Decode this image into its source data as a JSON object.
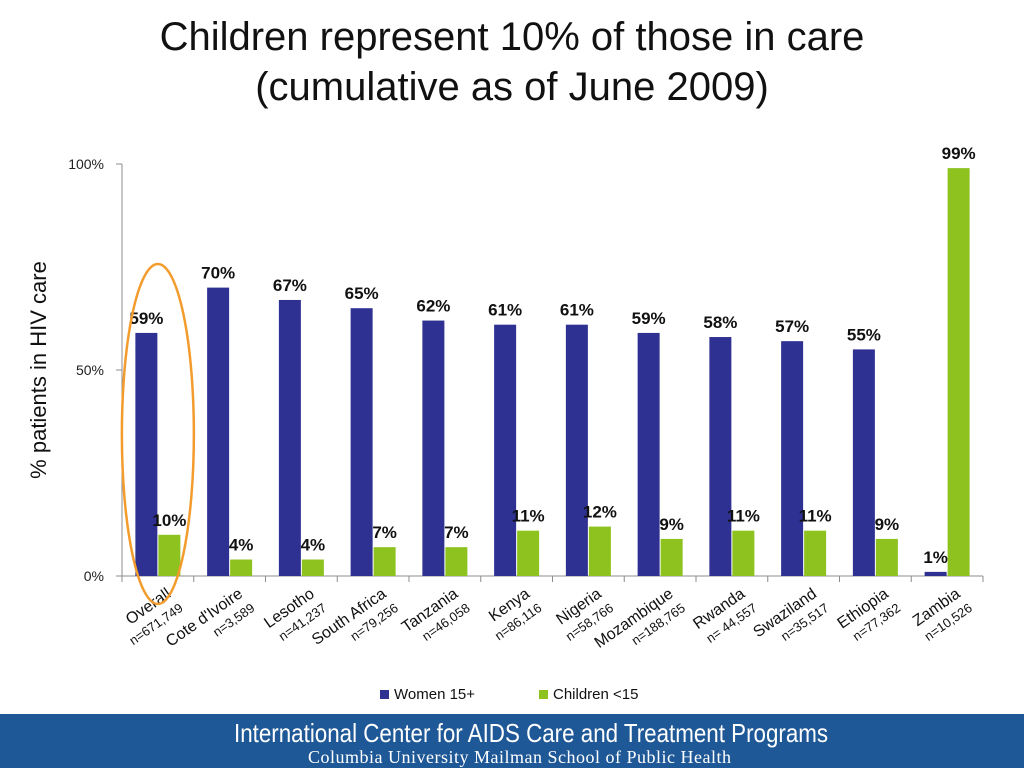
{
  "title": {
    "line1": "Children represent 10% of those in care",
    "line2": "(cumulative as of June 2009)"
  },
  "footer": {
    "line1": "International Center for AIDS Care and Treatment Programs",
    "line2": "Columbia University Mailman School of Public Health"
  },
  "colors": {
    "women": "#2e3192",
    "children": "#8dc21f",
    "highlight": "#f39c2e",
    "footer": "#1f5896"
  },
  "chart_data": {
    "type": "bar",
    "ylabel": "% patients in HIV care",
    "ylim": [
      0,
      100
    ],
    "yticks": [
      "0%",
      "50%",
      "100%"
    ],
    "categories": [
      {
        "name": "Overall",
        "n": "n=671,749"
      },
      {
        "name": "Cote d'Ivoire",
        "n": "n=3,589"
      },
      {
        "name": "Lesotho",
        "n": "n=41,237"
      },
      {
        "name": "South Africa",
        "n": "n=79,256"
      },
      {
        "name": "Tanzania",
        "n": "n=46,058"
      },
      {
        "name": "Kenya",
        "n": "n=86,116"
      },
      {
        "name": "Nigeria",
        "n": "n=58,766"
      },
      {
        "name": "Mozambique",
        "n": "n=188,765"
      },
      {
        "name": "Rwanda",
        "n": "n= 44,557"
      },
      {
        "name": "Swaziland",
        "n": "n=35,517"
      },
      {
        "name": "Ethiopia",
        "n": "n=77,362"
      },
      {
        "name": "Zambia",
        "n": "n=10,526"
      }
    ],
    "series": [
      {
        "name": "Women 15+",
        "values": [
          59,
          70,
          67,
          65,
          62,
          61,
          61,
          59,
          58,
          57,
          55,
          1
        ],
        "labels": [
          "59%",
          "70%",
          "67%",
          "65%",
          "62%",
          "61%",
          "61%",
          "59%",
          "58%",
          "57%",
          "55%",
          "1%"
        ]
      },
      {
        "name": "Children <15",
        "values": [
          10,
          4,
          4,
          7,
          7,
          11,
          12,
          9,
          11,
          11,
          9,
          99
        ],
        "labels": [
          "10%",
          "4%",
          "4%",
          "7%",
          "7%",
          "11%",
          "12%",
          "9%",
          "11%",
          "11%",
          "9%",
          "99%"
        ]
      }
    ],
    "legend": "bottom",
    "highlighted_category": "Overall"
  }
}
